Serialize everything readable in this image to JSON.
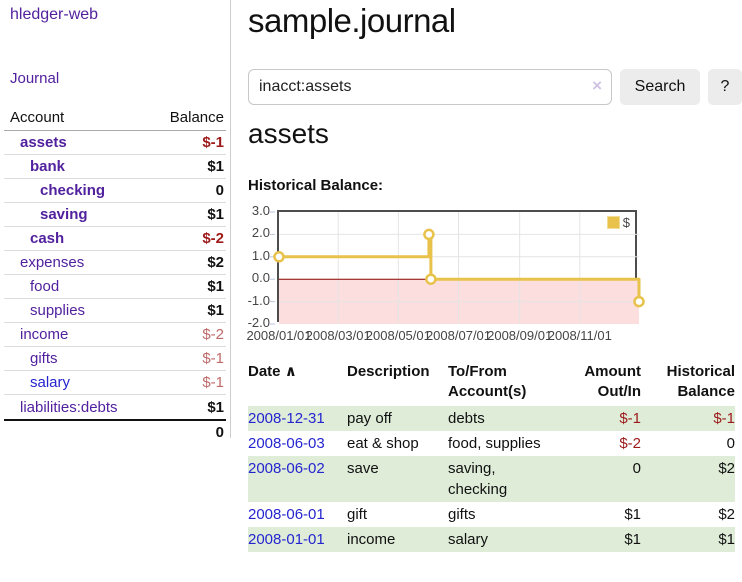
{
  "app": {
    "title": "hledger-web",
    "nav": {
      "journal": "Journal"
    }
  },
  "sidebar": {
    "columns": {
      "account": "Account",
      "balance": "Balance"
    },
    "accounts": [
      {
        "name": "assets",
        "balance": "$-1",
        "indent": 1,
        "bold": true,
        "link": "purple",
        "balance_style": "neg",
        "balance_bold": true
      },
      {
        "name": "bank",
        "balance": "$1",
        "indent": 2,
        "bold": true,
        "link": "purple",
        "balance_style": "pos",
        "balance_bold": true
      },
      {
        "name": "checking",
        "balance": "0",
        "indent": 3,
        "bold": true,
        "link": "purple",
        "balance_style": "pos",
        "balance_bold": true
      },
      {
        "name": "saving",
        "balance": "$1",
        "indent": 3,
        "bold": true,
        "link": "purple",
        "balance_style": "pos",
        "balance_bold": true
      },
      {
        "name": "cash",
        "balance": "$-2",
        "indent": 2,
        "bold": true,
        "link": "purple",
        "balance_style": "neg",
        "balance_bold": true
      },
      {
        "name": "expenses",
        "balance": "$2",
        "indent": 1,
        "bold": false,
        "link": "purple",
        "balance_style": "pos",
        "balance_bold": true
      },
      {
        "name": "food",
        "balance": "$1",
        "indent": 2,
        "bold": false,
        "link": "purple",
        "balance_style": "pos",
        "balance_bold": true
      },
      {
        "name": "supplies",
        "balance": "$1",
        "indent": 2,
        "bold": false,
        "link": "purple",
        "balance_style": "pos",
        "balance_bold": true
      },
      {
        "name": "income",
        "balance": "$-2",
        "indent": 1,
        "bold": false,
        "link": "purple",
        "balance_style": "neg-soft",
        "balance_bold": false
      },
      {
        "name": "gifts",
        "balance": "$-1",
        "indent": 2,
        "bold": false,
        "link": "purple",
        "balance_style": "neg-soft",
        "balance_bold": false
      },
      {
        "name": "salary",
        "balance": "$-1",
        "indent": 2,
        "bold": false,
        "link": "blue",
        "balance_style": "neg-soft",
        "balance_bold": false
      },
      {
        "name": "liabilities:debts",
        "balance": "$1",
        "indent": 1,
        "bold": false,
        "link": "purple",
        "balance_style": "pos",
        "balance_bold": true
      }
    ],
    "total": "0"
  },
  "main": {
    "page_title": "sample.journal",
    "search": {
      "value": "inacct:assets",
      "clear_icon": "×",
      "search_button": "Search",
      "help_button": "?"
    },
    "account_heading": "assets",
    "chart_heading": "Historical Balance:"
  },
  "chart_data": {
    "type": "line",
    "step": true,
    "title": "Historical Balance:",
    "x_range": [
      "2008/01/01",
      "2008/12/31"
    ],
    "x_total_days": 365,
    "ylim": [
      -2.0,
      3.0
    ],
    "grid": true,
    "legend_position": "top-right",
    "y_ticks": [
      {
        "label": "3.0",
        "value": 3
      },
      {
        "label": "2.0",
        "value": 2
      },
      {
        "label": "1.0",
        "value": 1
      },
      {
        "label": "0.0",
        "value": 0
      },
      {
        "label": "-1.0",
        "value": -1
      },
      {
        "label": "-2.0",
        "value": -2
      }
    ],
    "x_ticks": [
      {
        "label": "2008/01/01",
        "day": 0
      },
      {
        "label": "2008/03/01",
        "day": 60
      },
      {
        "label": "2008/05/01",
        "day": 121
      },
      {
        "label": "2008/07/01",
        "day": 182
      },
      {
        "label": "2008/09/01",
        "day": 244
      },
      {
        "label": "2008/11/01",
        "day": 305
      }
    ],
    "series": [
      {
        "name": "$",
        "color": "#e8c24a",
        "marker_fill": "#ffffff",
        "points": [
          {
            "date": "2008-01-01",
            "day": 0,
            "value": 1.0
          },
          {
            "date": "2008-06-01",
            "day": 152,
            "value": 2.0
          },
          {
            "date": "2008-06-03",
            "day": 154,
            "value": 0.0
          },
          {
            "date": "2008-12-31",
            "day": 365,
            "value": -1.0
          }
        ]
      }
    ],
    "colors": {
      "below_zero_fill": "#fcdede",
      "zero_line": "#8b0000",
      "gridline": "#e4e4e4",
      "plot_border": "#4d4d4d",
      "axis_text": "#454545",
      "outer_tick": "#b9c6dd"
    }
  },
  "register": {
    "columns": [
      {
        "label": "Date",
        "sort_indicator": "∧"
      },
      {
        "label": "Description"
      },
      {
        "label": "To/From Account(s)"
      },
      {
        "label": "Amount Out/In"
      },
      {
        "label": "Historical Balance"
      }
    ],
    "rows": [
      {
        "date": "2008-12-31",
        "description": "pay off",
        "accounts": "debts",
        "amount": "$-1",
        "balance": "$-1"
      },
      {
        "date": "2008-06-03",
        "description": "eat & shop",
        "accounts": "food, supplies",
        "amount": "$-2",
        "balance": "0"
      },
      {
        "date": "2008-06-02",
        "description": "save",
        "accounts": "saving, checking",
        "amount": "0",
        "balance": "$2"
      },
      {
        "date": "2008-06-01",
        "description": "gift",
        "accounts": "gifts",
        "amount": "$1",
        "balance": "$2"
      },
      {
        "date": "2008-01-01",
        "description": "income",
        "accounts": "salary",
        "amount": "$1",
        "balance": "$1"
      }
    ]
  },
  "colors": {
    "purple_link": "#52219e",
    "blue_link": "#2525cf",
    "negative": "#9d1a1a",
    "negative_soft": "#c06a6a",
    "row_green": "#deecd8",
    "button_bg": "#ececec"
  }
}
